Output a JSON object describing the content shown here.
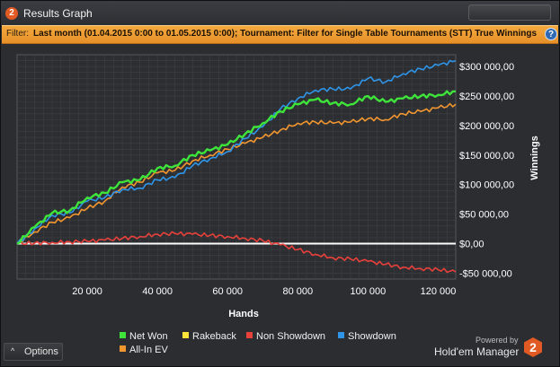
{
  "window": {
    "title": "Results Graph",
    "badge": "2"
  },
  "filter": {
    "label": "Filter:",
    "value": "Last month (01.04.2015 0:00 to 01.05.2015 0:00); Tournament: Filter for Single Table Tournaments (STT) True  Winnings"
  },
  "help_label": "?",
  "options_button": {
    "label": "Options",
    "chevron": "^"
  },
  "branding": {
    "powered_by": "Powered by",
    "name": "Hold'em Manager",
    "logo_text": "2"
  },
  "colors": {
    "net_won": "#3ee43a",
    "rakeback": "#ffe43a",
    "non_showdown": "#e8413b",
    "showdown": "#2f95e8",
    "all_in_ev": "#f3962f",
    "zero_line": "#ffffff",
    "plot_bg": "#2c2e32",
    "grid": "#3d4045",
    "filter_bg": "#f0a03a"
  },
  "chart_data": {
    "type": "line",
    "xlabel": "Hands",
    "ylabel": "Winnings",
    "xlim": [
      0,
      125000
    ],
    "ylim": [
      -60000,
      320000
    ],
    "x_ticks": [
      20000,
      40000,
      60000,
      80000,
      100000,
      120000
    ],
    "x_tick_labels": [
      "20 000",
      "40 000",
      "60 000",
      "80 000",
      "100 000",
      "120 000"
    ],
    "y_ticks": [
      300000,
      250000,
      200000,
      150000,
      100000,
      50000,
      0,
      -50000
    ],
    "y_tick_labels": [
      "$300 000,00",
      "$250 000,00",
      "$200 000,00",
      "$150 000,00",
      "$100 000,00",
      "$50 000,00",
      "$0,00",
      "-$50 000,00"
    ],
    "grid": true,
    "legend_position": "bottom",
    "series": [
      {
        "name": "Net Won",
        "color_key": "net_won",
        "x": [
          0,
          5000,
          10000,
          15000,
          20000,
          25000,
          30000,
          35000,
          40000,
          45000,
          50000,
          55000,
          60000,
          65000,
          70000,
          75000,
          80000,
          85000,
          90000,
          95000,
          100000,
          105000,
          110000,
          115000,
          120000,
          125000
        ],
        "y": [
          0,
          28000,
          52000,
          56000,
          78000,
          86000,
          104000,
          108000,
          128000,
          132000,
          150000,
          158000,
          168000,
          186000,
          204000,
          224000,
          236000,
          244000,
          238000,
          236000,
          250000,
          240000,
          246000,
          250000,
          252000,
          258000
        ]
      },
      {
        "name": "Rakeback",
        "color_key": "rakeback",
        "x": [
          0,
          125000
        ],
        "y": [
          0,
          0
        ]
      },
      {
        "name": "Non Showdown",
        "color_key": "non_showdown",
        "x": [
          0,
          5000,
          10000,
          15000,
          20000,
          25000,
          30000,
          35000,
          40000,
          45000,
          50000,
          55000,
          60000,
          65000,
          70000,
          75000,
          80000,
          85000,
          90000,
          95000,
          100000,
          105000,
          110000,
          115000,
          120000,
          125000
        ],
        "y": [
          0,
          1000,
          2000,
          3000,
          4000,
          6000,
          9000,
          12000,
          16000,
          17000,
          16000,
          14000,
          12000,
          9000,
          5000,
          -2000,
          -10000,
          -18000,
          -24000,
          -26000,
          -30000,
          -35000,
          -40000,
          -42000,
          -44000,
          -48000
        ]
      },
      {
        "name": "Showdown",
        "color_key": "showdown",
        "x": [
          0,
          5000,
          10000,
          15000,
          20000,
          25000,
          30000,
          35000,
          40000,
          45000,
          50000,
          55000,
          60000,
          65000,
          70000,
          75000,
          80000,
          85000,
          90000,
          95000,
          100000,
          105000,
          110000,
          115000,
          120000,
          125000
        ],
        "y": [
          0,
          25000,
          48000,
          52000,
          72000,
          78000,
          92000,
          94000,
          108000,
          112000,
          132000,
          144000,
          156000,
          178000,
          198000,
          228000,
          246000,
          260000,
          262000,
          262000,
          280000,
          274000,
          288000,
          296000,
          302000,
          310000
        ]
      },
      {
        "name": "All-In EV",
        "color_key": "all_in_ev",
        "x": [
          0,
          5000,
          10000,
          15000,
          20000,
          25000,
          30000,
          35000,
          40000,
          45000,
          50000,
          55000,
          60000,
          65000,
          70000,
          75000,
          80000,
          85000,
          90000,
          95000,
          100000,
          105000,
          110000,
          115000,
          120000,
          125000
        ],
        "y": [
          0,
          20000,
          36000,
          44000,
          60000,
          72000,
          96000,
          104000,
          120000,
          124000,
          140000,
          150000,
          160000,
          170000,
          180000,
          192000,
          204000,
          206000,
          204000,
          206000,
          212000,
          210000,
          220000,
          224000,
          230000,
          236000
        ]
      }
    ]
  }
}
